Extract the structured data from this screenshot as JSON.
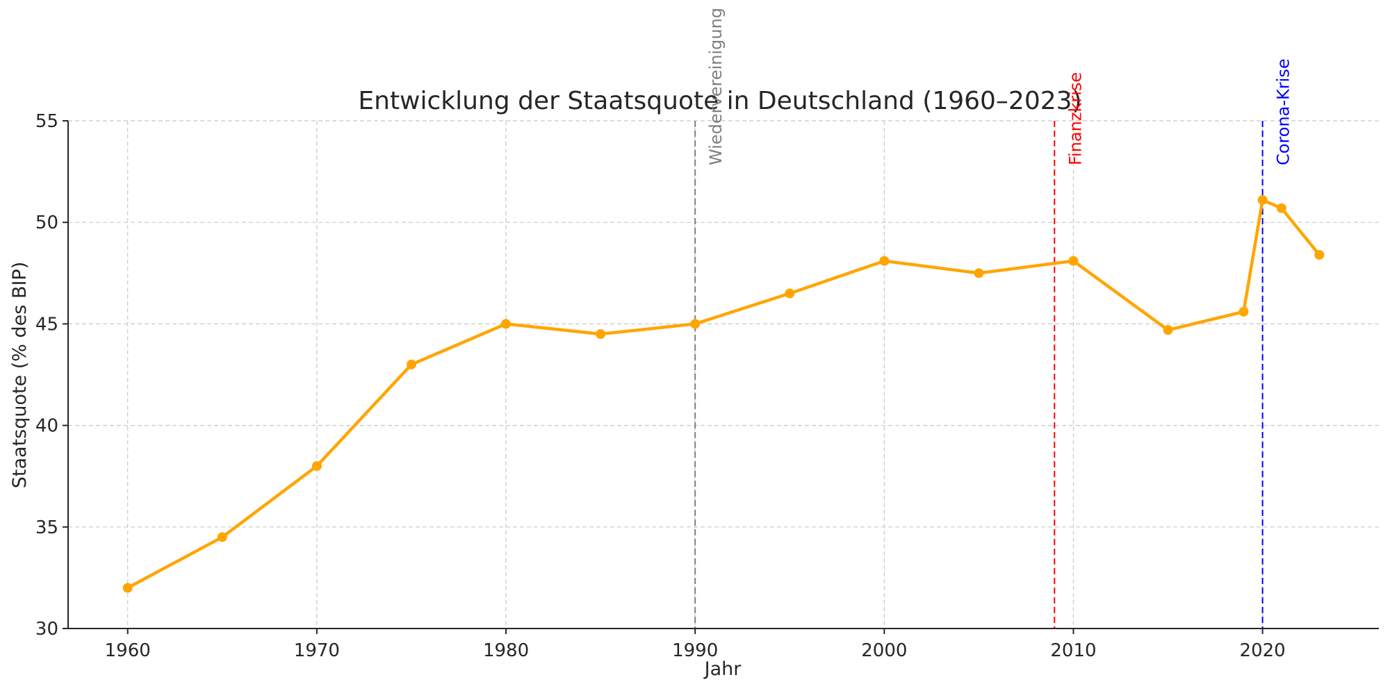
{
  "chart_data": {
    "type": "line",
    "title": "Entwicklung der Staatsquote in Deutschland (1960–2023)",
    "xlabel": "Jahr",
    "ylabel": "Staatsquote (% des BIP)",
    "xlim": [
      1956.85,
      2026.15
    ],
    "ylim": [
      30,
      55
    ],
    "xticks": [
      1960,
      1970,
      1980,
      1990,
      2000,
      2010,
      2020
    ],
    "yticks": [
      30,
      35,
      40,
      45,
      50,
      55
    ],
    "grid": true,
    "series": [
      {
        "color": "#FFA500",
        "x": [
          1960,
          1965,
          1970,
          1975,
          1980,
          1985,
          1990,
          1995,
          2000,
          2005,
          2010,
          2015,
          2019,
          2020,
          2021,
          2023
        ],
        "y": [
          32.0,
          34.5,
          38.0,
          43.0,
          45.0,
          44.5,
          45.0,
          46.5,
          48.1,
          47.5,
          48.1,
          44.7,
          45.6,
          51.1,
          50.7,
          48.4
        ]
      }
    ],
    "events": [
      {
        "x": 1990,
        "label": "Wiedervereinigung",
        "color": "#7f7f7f"
      },
      {
        "x": 2009,
        "label": "Finanzkrise",
        "color": "#ff0000"
      },
      {
        "x": 2020,
        "label": "Corona-Krise",
        "color": "#0000ff"
      }
    ]
  }
}
